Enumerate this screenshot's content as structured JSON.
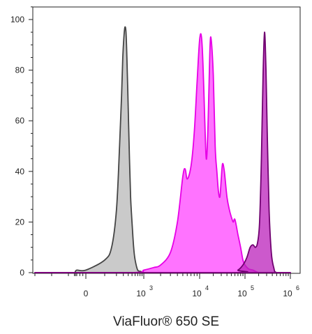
{
  "chart_data": {
    "type": "area",
    "title": "",
    "xlabel": "ViaFluor® 650 SE",
    "ylabel": "",
    "x_scale": "biexponential",
    "xlim": [
      -3000,
      1000000
    ],
    "ylim": [
      0,
      105
    ],
    "y_ticks": [
      0,
      20,
      40,
      60,
      80,
      100
    ],
    "x_tick_labels": [
      {
        "value": 0,
        "base": "0",
        "exp": ""
      },
      {
        "value": 1000,
        "base": "10",
        "exp": "3"
      },
      {
        "value": 10000,
        "base": "10",
        "exp": "4"
      },
      {
        "value": 100000,
        "base": "10",
        "exp": "5"
      },
      {
        "value": 1000000,
        "base": "10",
        "exp": "6"
      }
    ],
    "grid": false,
    "legend": "none",
    "series": [
      {
        "color": "#9e9e9e",
        "stroke": "#444444",
        "x": [
          -3000,
          -1000,
          -500,
          -300,
          0,
          100,
          150,
          200,
          240,
          270,
          290,
          310,
          330,
          350,
          370,
          400,
          430,
          460,
          500,
          550,
          600,
          700,
          850,
          1000,
          2000,
          1000000
        ],
        "values": [
          0,
          0,
          0,
          1,
          1,
          5,
          10,
          25,
          50,
          70,
          85,
          93,
          97,
          95,
          85,
          65,
          45,
          30,
          20,
          10,
          5,
          1,
          0.5,
          0,
          0,
          0
        ]
      },
      {
        "color": "#ff00ff",
        "stroke": "#e600e6",
        "x": [
          -3000,
          500,
          1000,
          1500,
          2000,
          3000,
          4000,
          5000,
          5500,
          6000,
          7000,
          8000,
          9000,
          10000,
          11000,
          12000,
          13000,
          14000,
          15000,
          16000,
          17000,
          18000,
          20000,
          22000,
          24000,
          26000,
          28000,
          30000,
          32000,
          35000,
          40000,
          45000,
          50000,
          55000,
          60000,
          70000,
          80000,
          90000,
          100000,
          120000,
          150000,
          170000,
          200000,
          250000,
          1000000
        ],
        "values": [
          0,
          0,
          1,
          2,
          3,
          8,
          20,
          38,
          41,
          37,
          42,
          55,
          75,
          92,
          93,
          80,
          60,
          45,
          53,
          72,
          90,
          92,
          78,
          50,
          40,
          32,
          30,
          37,
          43,
          40,
          30,
          25,
          22,
          20,
          21,
          15,
          10,
          5,
          3,
          1.5,
          1,
          0.5,
          0,
          0,
          0
        ]
      },
      {
        "color": "#bb22bb",
        "stroke": "#700070",
        "x": [
          -3000,
          50000,
          70000,
          90000,
          110000,
          130000,
          150000,
          170000,
          190000,
          210000,
          230000,
          250000,
          270000,
          290000,
          310000,
          340000,
          380000,
          430000,
          500000,
          1000000
        ],
        "values": [
          0,
          0,
          1,
          3,
          6,
          10,
          11,
          10,
          12,
          20,
          45,
          78,
          95,
          80,
          55,
          25,
          8,
          2,
          0,
          0
        ]
      }
    ]
  }
}
